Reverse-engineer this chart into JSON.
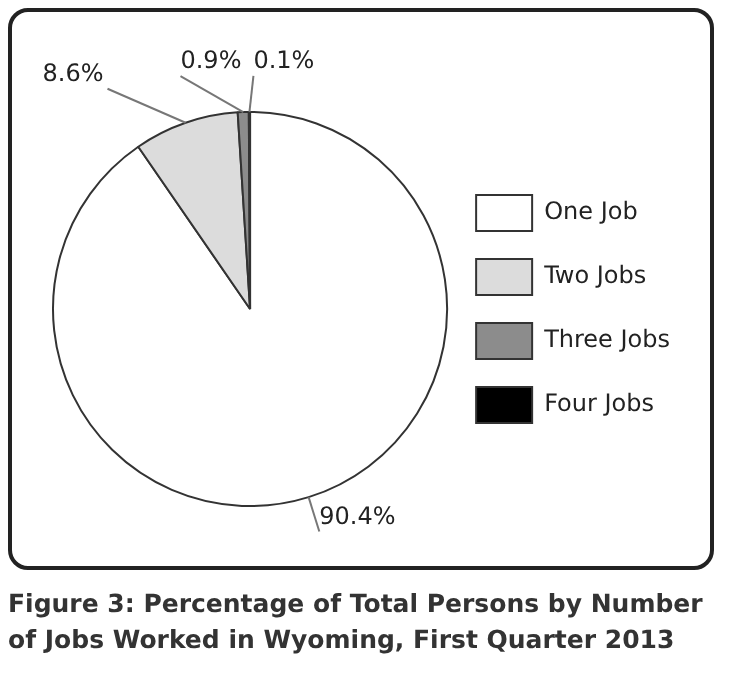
{
  "chart_data": {
    "type": "pie",
    "title": "Figure 3: Percentage of Total Persons by Number of Jobs Worked in Wyoming, First Quarter 2013",
    "categories": [
      "One Job",
      "Two Jobs",
      "Three Jobs",
      "Four Jobs"
    ],
    "values": [
      90.4,
      8.6,
      0.9,
      0.1
    ],
    "value_labels": [
      "90.4%",
      "8.6%",
      "0.9%",
      "0.1%"
    ],
    "colors": [
      "#ffffff",
      "#dcdcdc",
      "#8c8c8c",
      "#000000"
    ],
    "legend": "right"
  }
}
